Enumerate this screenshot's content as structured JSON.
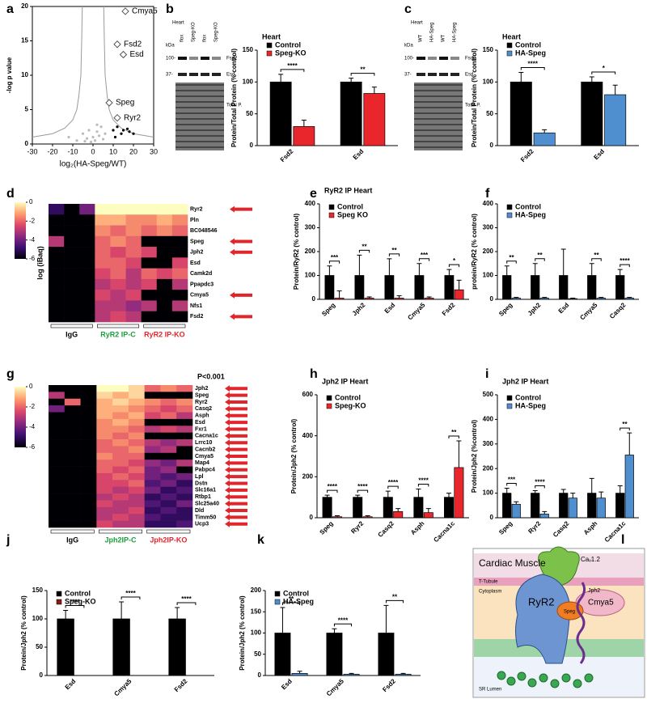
{
  "chart_data": [
    {
      "panel": "a",
      "type": "scatter",
      "xlabel": "log₂(HA-Speg/WT)",
      "ylabel": "-log p value",
      "xlim": [
        -30,
        30
      ],
      "xticks": [
        -30,
        -20,
        -10,
        0,
        10,
        20,
        30
      ],
      "ylim": [
        0,
        20
      ],
      "yticks": [
        0,
        5,
        10,
        15,
        20
      ],
      "series": [
        {
          "marker": "line",
          "color": "#999999",
          "x": [
            5.3,
            5.6,
            6,
            7,
            8,
            10,
            14,
            20,
            30
          ],
          "values": [
            20,
            15,
            10,
            7,
            5,
            3.5,
            2.3,
            1.5,
            1
          ]
        },
        {
          "marker": "line",
          "color": "#999999",
          "x": [
            -5.3,
            -5.6,
            -6,
            -7,
            -8,
            -10,
            -14,
            -20,
            -30
          ],
          "values": [
            20,
            15,
            10,
            7,
            5,
            3.5,
            2.3,
            1.5,
            1
          ]
        },
        {
          "marker": "dot",
          "color": "#bbbbbb",
          "x": [
            -12,
            -8,
            -5,
            -3,
            -2,
            0,
            1,
            2,
            3,
            4,
            5,
            -1,
            6,
            -4,
            2
          ],
          "values": [
            1,
            0.5,
            1.5,
            0.8,
            2,
            1,
            0.5,
            1.8,
            1.2,
            2.5,
            0.7,
            0.3,
            1.5,
            0.4,
            2.8
          ]
        },
        {
          "marker": "dot",
          "color": "#000000",
          "x": [
            10,
            12,
            14,
            15,
            17,
            18,
            20,
            11
          ],
          "values": [
            2,
            2.5,
            1.5,
            2,
            2.2,
            1.8,
            1.5,
            1
          ]
        },
        {
          "marker": "diamond",
          "color": "#555555",
          "x": [
            16,
            12,
            15,
            8,
            12
          ],
          "values": [
            19.3,
            14.5,
            13,
            6,
            3.8
          ],
          "labels": [
            "Cmya5",
            "Fsd2",
            "Esd",
            "Speg",
            "Ryr2"
          ]
        }
      ]
    },
    {
      "panel": "b",
      "type": "bar",
      "title": "Heart",
      "ylabel": "Protein/Total Protein (% control)",
      "categories": [
        "Fsd2",
        "Esd"
      ],
      "ylim": [
        0,
        150
      ],
      "yticks": [
        0,
        50,
        100,
        150
      ],
      "series": [
        {
          "name": "Control",
          "color": "#000000",
          "values": [
            100,
            100
          ],
          "errors": [
            12,
            6
          ]
        },
        {
          "name": "Speg-KO",
          "color": "#e8262b",
          "values": [
            30,
            82
          ],
          "errors": [
            10,
            10
          ]
        }
      ],
      "sig": [
        "****",
        "**"
      ]
    },
    {
      "panel": "c",
      "type": "bar",
      "title": "Heart",
      "ylabel": "Protein/Total Protein (% control)",
      "categories": [
        "Fsd2",
        "Esd"
      ],
      "ylim": [
        0,
        150
      ],
      "yticks": [
        0,
        50,
        100,
        150
      ],
      "series": [
        {
          "name": "Control",
          "color": "#000000",
          "values": [
            100,
            100
          ],
          "errors": [
            15,
            8
          ]
        },
        {
          "name": "HA-Speg",
          "color": "#4f8fd0",
          "values": [
            20,
            80
          ],
          "errors": [
            5,
            15
          ]
        }
      ],
      "sig": [
        "****",
        "*"
      ]
    },
    {
      "panel": "d",
      "type": "heatmap",
      "ylabel": "log (iBaq)",
      "clim": [
        -6,
        0
      ],
      "cticks": [
        0,
        -2,
        -4,
        -6
      ],
      "colormap": [
        "#000004",
        "#3b0f70",
        "#8c2981",
        "#de4968",
        "#fe9f6d",
        "#fcfdbf"
      ],
      "rows": [
        "Ryr2",
        "Pln",
        "BC048546",
        "Speg",
        "Jph2",
        "Esd",
        "Camk2d",
        "Ppapdc3",
        "Cmya5",
        "Nfs1",
        "Fsd2"
      ],
      "arrows": [
        true,
        false,
        false,
        true,
        true,
        false,
        false,
        false,
        true,
        false,
        true
      ],
      "groups": [
        {
          "name": "IgG",
          "color": "#000000"
        },
        {
          "name": "RyR2 IP-C",
          "color": "#1a9e3a"
        },
        {
          "name": "RyR2 IP-KO",
          "color": "#e0262b"
        }
      ],
      "matrix": [
        [
          -5,
          -6,
          -4,
          0,
          0,
          0,
          0,
          0,
          0
        ],
        [
          -6,
          -6,
          -6,
          -1,
          -1,
          -1.5,
          -1.5,
          -1,
          -1.5
        ],
        [
          -6,
          -6,
          -6,
          -1.5,
          -2,
          -1.5,
          -2,
          -1.5,
          -2
        ],
        [
          -3,
          -6,
          -6,
          -2,
          -1.5,
          -2,
          -6,
          -6,
          -6
        ],
        [
          -6,
          -6,
          -6,
          -2,
          -2.5,
          -2,
          -2.5,
          -6,
          -6
        ],
        [
          -6,
          -6,
          -6,
          -2,
          -2,
          -2.5,
          -6,
          -6,
          -2.5
        ],
        [
          -6,
          -6,
          -6,
          -2.5,
          -2,
          -3,
          -2,
          -2.5,
          -2
        ],
        [
          -6,
          -6,
          -6,
          -3,
          -2.5,
          -3,
          -2.5,
          -6,
          -3
        ],
        [
          -6,
          -6,
          -6,
          -2.5,
          -3,
          -2.5,
          -6,
          -6,
          -6
        ],
        [
          -6,
          -6,
          -6,
          -3,
          -3,
          -3.5,
          -3,
          -6,
          -3
        ],
        [
          -6,
          -6,
          -6,
          -3,
          -2.5,
          -3,
          -6,
          -6,
          -6
        ]
      ]
    },
    {
      "panel": "e",
      "type": "bar",
      "title": "RyR2 IP Heart",
      "ylabel": "Protein/RyR2 (% control)",
      "categories": [
        "Speg",
        "Jph2",
        "Esd",
        "Cmya5",
        "Fsd2"
      ],
      "ylim": [
        0,
        400
      ],
      "yticks": [
        0,
        100,
        200,
        300,
        400
      ],
      "series": [
        {
          "name": "Control",
          "color": "#000000",
          "values": [
            100,
            100,
            100,
            100,
            100
          ],
          "errors": [
            40,
            85,
            70,
            50,
            25
          ]
        },
        {
          "name": "Speg KO",
          "color": "#e8262b",
          "values": [
            5,
            5,
            5,
            5,
            40
          ],
          "errors": [
            30,
            5,
            10,
            5,
            40
          ]
        }
      ],
      "sig": [
        "***",
        "**",
        "**",
        "***",
        "*"
      ]
    },
    {
      "panel": "f",
      "type": "bar",
      "ylabel": "protein/RyR2 (% control)",
      "categories": [
        "Speg",
        "Jph2",
        "Esd",
        "Cmya5",
        "Casq2"
      ],
      "ylim": [
        0,
        400
      ],
      "yticks": [
        0,
        100,
        200,
        300,
        400
      ],
      "series": [
        {
          "name": "Control",
          "color": "#000000",
          "values": [
            100,
            100,
            100,
            100,
            100
          ],
          "errors": [
            40,
            50,
            110,
            50,
            25
          ]
        },
        {
          "name": "HA-Speg",
          "color": "#4f8fd0",
          "values": [
            5,
            5,
            3,
            5,
            5
          ],
          "errors": [
            3,
            3,
            2,
            3,
            3
          ]
        }
      ],
      "sig": [
        "**",
        "**",
        null,
        "**",
        "****"
      ]
    },
    {
      "panel": "g",
      "type": "heatmap",
      "annotation": "P<0.001",
      "clim": [
        -6,
        0
      ],
      "cticks": [
        0,
        -2,
        -4,
        -6
      ],
      "colormap": [
        "#000004",
        "#3b0f70",
        "#8c2981",
        "#de4968",
        "#fe9f6d",
        "#fcfdbf"
      ],
      "rows": [
        "Jph2",
        "Speg",
        "Ryr2",
        "Casq2",
        "Asph",
        "Esd",
        "Fxr1",
        "Cacna1c",
        "Lrrc10",
        "Cacnb2",
        "Cmya5",
        "Map4",
        "Pabpc4",
        "Lpl",
        "Dstn",
        "Slc16a1",
        "Rtbp1",
        "Slc25a40",
        "Dld",
        "Timm50",
        "Ucp3"
      ],
      "arrows": [
        true,
        true,
        true,
        true,
        true,
        true,
        true,
        true,
        true,
        true,
        true,
        true,
        true,
        true,
        true,
        true,
        true,
        true,
        true,
        true,
        true
      ],
      "groups": [
        {
          "name": "IgG",
          "color": "#000000"
        },
        {
          "name": "Jph2IP-C",
          "color": "#1a9e3a"
        },
        {
          "name": "Jph2IP-KO",
          "color": "#e0262b"
        }
      ],
      "matrix": [
        [
          -6,
          -6,
          -6,
          0,
          0,
          -0.5,
          -2,
          -1.5,
          -2
        ],
        [
          -3,
          -6,
          -6,
          -0.5,
          -1,
          -0.5,
          -6,
          -6,
          -6
        ],
        [
          -6,
          -2,
          -6,
          -1,
          -0.5,
          -1,
          -1.5,
          -2,
          -1.5
        ],
        [
          -4,
          -6,
          -6,
          -1,
          -1,
          -1.5,
          -2,
          -2.5,
          -2
        ],
        [
          -6,
          -6,
          -6,
          -1,
          -1.5,
          -1,
          -2.5,
          -2,
          -3
        ],
        [
          -6,
          -6,
          -6,
          -1.5,
          -1,
          -1.5,
          -6,
          -6,
          -6
        ],
        [
          -6,
          -6,
          -6,
          -1.5,
          -1.5,
          -2,
          -3,
          -2.5,
          -3
        ],
        [
          -6,
          -6,
          -6,
          -1.5,
          -2,
          -1.5,
          -6,
          -6,
          -6
        ],
        [
          -6,
          -6,
          -6,
          -2,
          -1.5,
          -2,
          -3,
          -3.5,
          -3
        ],
        [
          -6,
          -6,
          -6,
          -2,
          -2,
          -1.5,
          -3.5,
          -3,
          -6
        ],
        [
          -6,
          -6,
          -6,
          -1.5,
          -2,
          -2,
          -6,
          -6,
          -6
        ],
        [
          -6,
          -6,
          -6,
          -2,
          -2,
          -2.5,
          -3.5,
          -4,
          -3
        ],
        [
          -6,
          -6,
          -6,
          -2,
          -2.5,
          -2,
          -4,
          -3.5,
          -6
        ],
        [
          -6,
          -6,
          -6,
          -2.5,
          -2,
          -2.5,
          -4,
          -4.5,
          -4
        ],
        [
          -6,
          -6,
          -6,
          -2.5,
          -2.5,
          -2,
          -4.5,
          -4,
          -5
        ],
        [
          -6,
          -6,
          -6,
          -2.5,
          -3,
          -2.5,
          -4,
          -5,
          -4.5
        ],
        [
          -6,
          -6,
          -6,
          -3,
          -2.5,
          -3,
          -5,
          -4.5,
          -5
        ],
        [
          -6,
          -6,
          -6,
          -2.5,
          -3,
          -3,
          -4.5,
          -5,
          -4
        ],
        [
          -6,
          -6,
          -6,
          -3,
          -3,
          -2.5,
          -5,
          -4.5,
          -5
        ],
        [
          -6,
          -6,
          -6,
          -3,
          -2.5,
          -3,
          -4.5,
          -5,
          -5
        ],
        [
          -6,
          -6,
          -6,
          -2.5,
          -3,
          -3,
          -5,
          -5,
          -4.5
        ]
      ]
    },
    {
      "panel": "h",
      "type": "bar",
      "title": "Jph2 IP Heart",
      "ylabel": "Protein/Jph2 (% control)",
      "categories": [
        "Speg",
        "Ryr2",
        "Casq2",
        "Asph",
        "Cacna1c"
      ],
      "ylim": [
        0,
        600
      ],
      "yticks": [
        0,
        200,
        400,
        600
      ],
      "series": [
        {
          "name": "Control",
          "color": "#000000",
          "values": [
            100,
            100,
            100,
            100,
            100
          ],
          "errors": [
            10,
            10,
            30,
            40,
            20
          ]
        },
        {
          "name": "Speg-KO",
          "color": "#e8262b",
          "values": [
            5,
            5,
            30,
            25,
            245
          ],
          "errors": [
            5,
            5,
            15,
            20,
            130
          ]
        }
      ],
      "sig": [
        "****",
        "****",
        "****",
        "****",
        "**"
      ]
    },
    {
      "panel": "i",
      "type": "bar",
      "title": "Jph2 IP Heart",
      "ylabel": "Protein/Jph2 (%control)",
      "categories": [
        "Speg",
        "Ryr2",
        "Casq2",
        "Asph",
        "Cacna1c"
      ],
      "ylim": [
        0,
        500
      ],
      "yticks": [
        0,
        100,
        200,
        300,
        400,
        500
      ],
      "series": [
        {
          "name": "Control",
          "color": "#000000",
          "values": [
            100,
            100,
            100,
            100,
            100
          ],
          "errors": [
            20,
            10,
            15,
            60,
            30
          ]
        },
        {
          "name": "HA-Speg",
          "color": "#4f8fd0",
          "values": [
            55,
            15,
            80,
            80,
            255
          ],
          "errors": [
            10,
            10,
            20,
            25,
            90
          ]
        }
      ],
      "sig": [
        "***",
        "****",
        null,
        null,
        "**"
      ]
    },
    {
      "panel": "j",
      "type": "bar",
      "ylabel": "Protein/Jph2 (% control)",
      "categories": [
        "Esd",
        "Cmya5",
        "Fsd2"
      ],
      "ylim": [
        0,
        150
      ],
      "yticks": [
        0,
        50,
        100,
        150
      ],
      "series": [
        {
          "name": "Control",
          "color": "#000000",
          "values": [
            100,
            100,
            100
          ],
          "errors": [
            15,
            30,
            20
          ]
        },
        {
          "name": "Speg-KO",
          "color": "#8b1a1a",
          "values": [
            0,
            0,
            0
          ],
          "errors": [
            0,
            0,
            0
          ]
        }
      ],
      "sig": [
        "****",
        "****",
        "****"
      ]
    },
    {
      "panel": "k",
      "type": "bar",
      "ylabel": "Protein/Jph2 (% control)",
      "categories": [
        "Esd",
        "Cmya5",
        "Fsd2"
      ],
      "ylim": [
        0,
        200
      ],
      "yticks": [
        0,
        50,
        100,
        150,
        200
      ],
      "series": [
        {
          "name": "Control",
          "color": "#000000",
          "values": [
            100,
            100,
            100
          ],
          "errors": [
            60,
            10,
            65
          ]
        },
        {
          "name": "HA-Speg",
          "color": "#4f8fd0",
          "values": [
            5,
            3,
            3
          ],
          "errors": [
            5,
            2,
            2
          ]
        }
      ],
      "sig": [
        "**",
        "****",
        "**"
      ]
    }
  ],
  "blots": [
    {
      "tissue": "Heart",
      "unit": "kDa",
      "markers": [
        "100-",
        "37-"
      ],
      "lanes": [
        "flox",
        "Speg-KO",
        "flox",
        "Speg-KO"
      ],
      "bands": [
        "Fsd2",
        "Esd",
        "Total P."
      ]
    },
    {
      "tissue": "Heart",
      "unit": "kDa",
      "markers": [
        "100-",
        "37-"
      ],
      "lanes": [
        "WT",
        "HA-Speg",
        "WT",
        "HA-Speg"
      ],
      "bands": [
        "Fsd2",
        "Esd",
        "Total P."
      ]
    }
  ],
  "diagram": {
    "panel": "l",
    "labels": [
      "Cardiac Muscle",
      "Caᵥ1.2",
      "T-Tubule",
      "Cytoplasm",
      "Jph2",
      "RyR2",
      "Speg",
      "Cmya5",
      "SR Lumen"
    ]
  }
}
